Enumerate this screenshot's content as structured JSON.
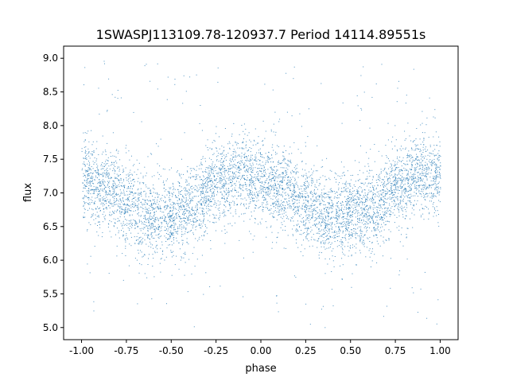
{
  "chart_data": {
    "type": "scatter",
    "title": "1SWASPJ113109.78-120937.7 Period 14114.89551s",
    "xlabel": "phase",
    "ylabel": "flux",
    "xlim": [
      -1.1,
      1.1
    ],
    "ylim": [
      4.82,
      9.18
    ],
    "xticks": [
      "-1.00",
      "-0.75",
      "-0.50",
      "-0.25",
      "0.00",
      "0.25",
      "0.50",
      "0.75",
      "1.00"
    ],
    "yticks": [
      "5.0",
      "5.5",
      "6.0",
      "6.5",
      "7.0",
      "7.5",
      "8.0",
      "8.5",
      "9.0"
    ],
    "grid": false,
    "color": "#1f77b4",
    "point_count_approx": 20000,
    "trend": {
      "phase": [
        -1.0,
        -0.875,
        -0.75,
        -0.625,
        -0.5,
        -0.375,
        -0.25,
        -0.125,
        0.0,
        0.125,
        0.25,
        0.375,
        0.5,
        0.625,
        0.75,
        0.875,
        1.0
      ],
      "mean_flux": [
        7.2,
        7.1,
        6.85,
        6.65,
        6.65,
        6.8,
        7.15,
        7.3,
        7.2,
        7.05,
        6.85,
        6.65,
        6.7,
        6.75,
        7.1,
        7.3,
        7.25
      ],
      "scatter_std": 0.3,
      "outlier_range": [
        5.0,
        9.0
      ]
    }
  }
}
